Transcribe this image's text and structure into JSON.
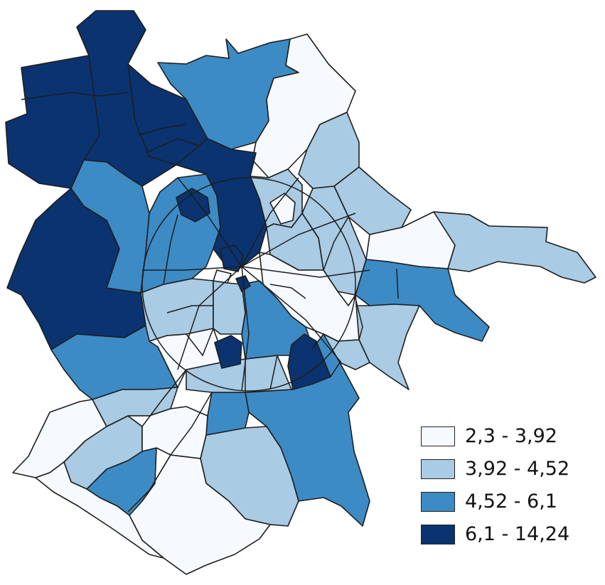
{
  "colors": {
    "c1": "#f6fafe",
    "c2": "#a9cbe4",
    "c3": "#3c8bc5",
    "c4": "#0a3370",
    "stroke": "#1e1e1e"
  },
  "legend": {
    "items": [
      {
        "label": "2,3 - 3,92",
        "class": "c1"
      },
      {
        "label": "3,92 - 4,52",
        "class": "c2"
      },
      {
        "label": "4,52 - 6,1",
        "class": "c3"
      },
      {
        "label": "6,1 - 14,24",
        "class": "c4"
      }
    ]
  }
}
